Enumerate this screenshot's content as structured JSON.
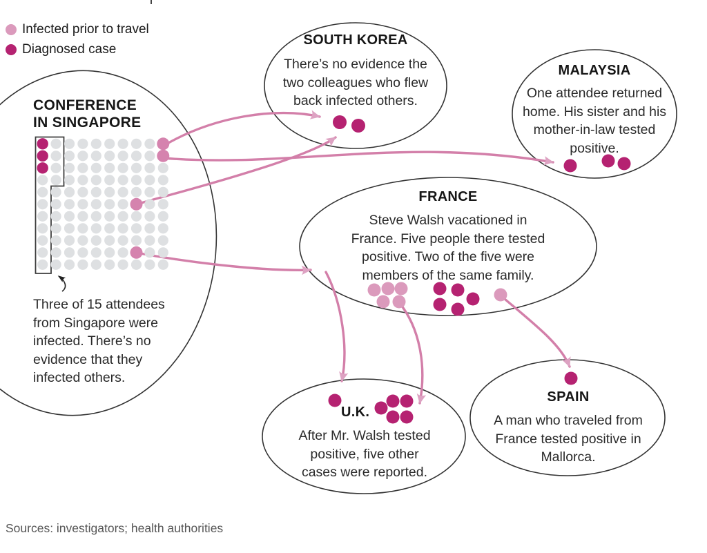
{
  "colors": {
    "case": "#b52271",
    "prior": "#db9abc",
    "traveler": "#d583ae",
    "arrow": "#d37fa9",
    "arrowhead": "#dda2c2",
    "grid_dot": "#dee0e2"
  },
  "legend": {
    "items": [
      {
        "type": "prior",
        "label": "Infected prior to travel"
      },
      {
        "type": "case",
        "label": "Diagnosed case"
      }
    ]
  },
  "singapore": {
    "title": "CONFERENCE\nIN SINGAPORE",
    "note": "Three of 15 attendees\nfrom Singapore were\ninfected. There’s no\nevidence that they\ninfected others.",
    "grid": {
      "columns": 10,
      "rows": 11,
      "infected_cells": [
        [
          0,
          0
        ],
        [
          0,
          1
        ],
        [
          0,
          2
        ]
      ],
      "traveler_cells": [
        [
          9,
          0
        ],
        [
          9,
          1
        ],
        [
          7,
          5
        ],
        [
          7,
          9
        ]
      ],
      "outlined_attendees": 15
    }
  },
  "nodes": {
    "south_korea": {
      "title": "SOUTH KOREA",
      "body": "There’s no evidence the\ntwo colleagues who flew\nback infected others.",
      "dot_groups": [
        {
          "key": "south_korea",
          "types": [
            "case",
            "case"
          ]
        }
      ]
    },
    "malaysia": {
      "title": "MALAYSIA",
      "body": "One attendee returned\nhome. His sister and his\nmother-in-law tested\npositive.",
      "dot_groups": [
        {
          "key": "malaysia",
          "types": [
            "case",
            "case",
            "case"
          ]
        }
      ]
    },
    "france": {
      "title": "FRANCE",
      "body": "Steve Walsh vacationed in\nFrance. Five people there tested\npositive. Two of the five were\nmembers of the same family.",
      "dot_groups": [
        {
          "key": "france_prior",
          "types": [
            "prior",
            "prior",
            "prior",
            "prior",
            "prior"
          ]
        },
        {
          "key": "france_cases",
          "types": [
            "case",
            "case",
            "case",
            "case",
            "case"
          ]
        },
        {
          "key": "france_traveler",
          "types": [
            "prior"
          ]
        }
      ]
    },
    "uk": {
      "title": "U.K.",
      "body": "After Mr. Walsh tested\npositive, five other\ncases were reported.",
      "dot_groups": [
        {
          "key": "uk_walsh",
          "types": [
            "case"
          ]
        },
        {
          "key": "uk_cases",
          "types": [
            "case",
            "case",
            "case",
            "case",
            "case"
          ]
        }
      ]
    },
    "spain": {
      "title": "SPAIN",
      "body": "A man who traveled from\nFrance tested positive in\nMallorca.",
      "dot_groups": [
        {
          "key": "spain",
          "types": [
            "case"
          ]
        }
      ]
    }
  },
  "sources": "Sources: investigators; health authorities"
}
